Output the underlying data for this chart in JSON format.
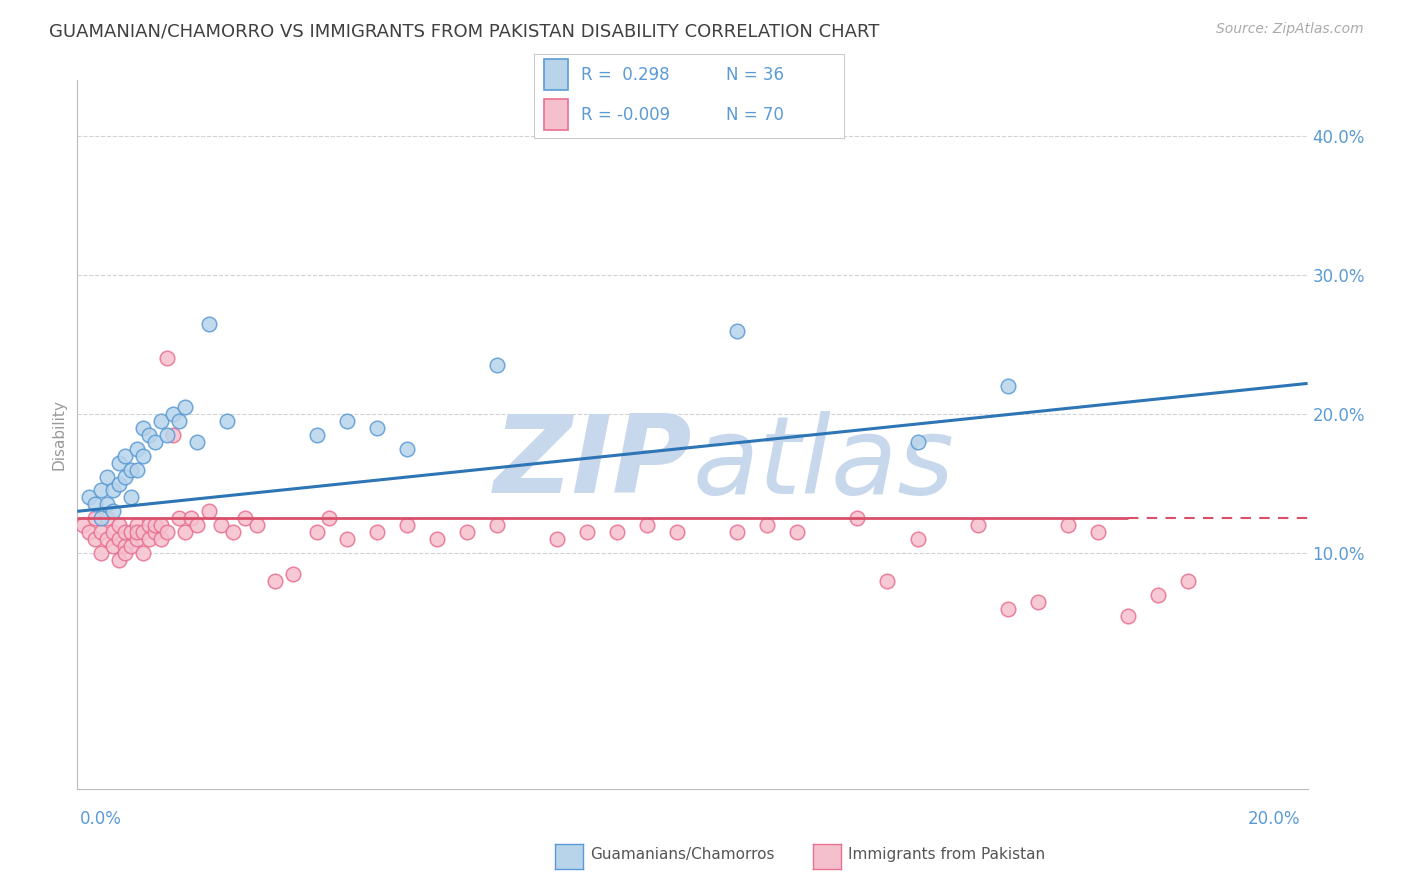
{
  "title": "GUAMANIAN/CHAMORRO VS IMMIGRANTS FROM PAKISTAN DISABILITY CORRELATION CHART",
  "source": "Source: ZipAtlas.com",
  "ylabel": "Disability",
  "y_ticks": [
    0.1,
    0.2,
    0.3,
    0.4
  ],
  "y_tick_labels": [
    "10.0%",
    "20.0%",
    "30.0%",
    "40.0%"
  ],
  "x_range": [
    0.0,
    0.205
  ],
  "y_range": [
    -0.07,
    0.44
  ],
  "legend_r1": "R =  0.298",
  "legend_n1": "N = 36",
  "legend_r2": "R = -0.009",
  "legend_n2": "N = 70",
  "blue_face_color": "#b8d4ea",
  "blue_edge_color": "#5b9bd5",
  "pink_face_color": "#f5c0ce",
  "pink_edge_color": "#e87090",
  "blue_line_color": "#2e75b6",
  "pink_line_color": "#d94f6a",
  "watermark_zip_color": "#c8d8ec",
  "watermark_atlas_color": "#c8d8ec",
  "title_color": "#404040",
  "axis_label_color": "#5b9bd5",
  "background_color": "#ffffff",
  "grid_color": "#c8c8c8",
  "legend_label1": "Guamanians/Chamorros",
  "legend_label2": "Immigrants from Pakistan",
  "blue_scatter_x": [
    0.002,
    0.003,
    0.004,
    0.004,
    0.005,
    0.005,
    0.006,
    0.006,
    0.007,
    0.007,
    0.008,
    0.008,
    0.009,
    0.009,
    0.01,
    0.01,
    0.011,
    0.011,
    0.012,
    0.013,
    0.014,
    0.015,
    0.016,
    0.017,
    0.018,
    0.02,
    0.022,
    0.025,
    0.04,
    0.045,
    0.05,
    0.055,
    0.07,
    0.11,
    0.14,
    0.155
  ],
  "blue_scatter_y": [
    0.14,
    0.135,
    0.125,
    0.145,
    0.155,
    0.135,
    0.145,
    0.13,
    0.15,
    0.165,
    0.155,
    0.17,
    0.14,
    0.16,
    0.175,
    0.16,
    0.17,
    0.19,
    0.185,
    0.18,
    0.195,
    0.185,
    0.2,
    0.195,
    0.205,
    0.18,
    0.265,
    0.195,
    0.185,
    0.195,
    0.19,
    0.175,
    0.235,
    0.26,
    0.18,
    0.22
  ],
  "pink_scatter_x": [
    0.001,
    0.002,
    0.003,
    0.003,
    0.004,
    0.004,
    0.005,
    0.005,
    0.006,
    0.006,
    0.007,
    0.007,
    0.007,
    0.008,
    0.008,
    0.008,
    0.009,
    0.009,
    0.01,
    0.01,
    0.01,
    0.011,
    0.011,
    0.012,
    0.012,
    0.013,
    0.013,
    0.014,
    0.014,
    0.015,
    0.015,
    0.016,
    0.017,
    0.018,
    0.019,
    0.02,
    0.022,
    0.024,
    0.026,
    0.028,
    0.03,
    0.033,
    0.036,
    0.04,
    0.042,
    0.045,
    0.05,
    0.055,
    0.06,
    0.065,
    0.07,
    0.08,
    0.085,
    0.09,
    0.095,
    0.1,
    0.11,
    0.115,
    0.12,
    0.13,
    0.135,
    0.14,
    0.15,
    0.155,
    0.16,
    0.165,
    0.17,
    0.175,
    0.18,
    0.185
  ],
  "pink_scatter_y": [
    0.12,
    0.115,
    0.11,
    0.125,
    0.1,
    0.115,
    0.11,
    0.125,
    0.105,
    0.115,
    0.095,
    0.11,
    0.12,
    0.105,
    0.1,
    0.115,
    0.105,
    0.115,
    0.11,
    0.12,
    0.115,
    0.1,
    0.115,
    0.11,
    0.12,
    0.115,
    0.12,
    0.11,
    0.12,
    0.115,
    0.24,
    0.185,
    0.125,
    0.115,
    0.125,
    0.12,
    0.13,
    0.12,
    0.115,
    0.125,
    0.12,
    0.08,
    0.085,
    0.115,
    0.125,
    0.11,
    0.115,
    0.12,
    0.11,
    0.115,
    0.12,
    0.11,
    0.115,
    0.115,
    0.12,
    0.115,
    0.115,
    0.12,
    0.115,
    0.125,
    0.08,
    0.11,
    0.12,
    0.06,
    0.065,
    0.12,
    0.115,
    0.055,
    0.07,
    0.08
  ],
  "blue_line_x0": 0.0,
  "blue_line_x1": 0.205,
  "blue_line_y0": 0.13,
  "blue_line_y1": 0.222,
  "pink_line_x0": 0.0,
  "pink_line_x1": 0.175,
  "pink_line_y0": 0.125,
  "pink_line_y1": 0.125
}
